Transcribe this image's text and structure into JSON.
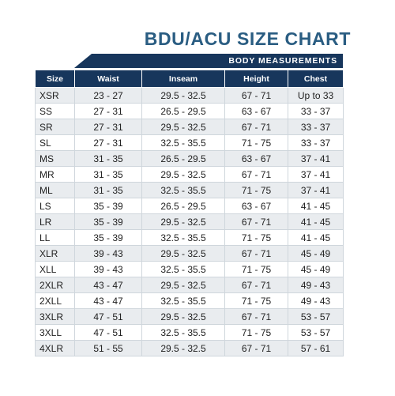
{
  "title": "BDU/ACU SIZE CHART",
  "banner": "BODY MEASUREMENTS",
  "columns": [
    "Size",
    "Waist",
    "Inseam",
    "Height",
    "Chest"
  ],
  "rows": [
    [
      "XSR",
      "23 - 27",
      "29.5 - 32.5",
      "67 - 71",
      "Up to 33"
    ],
    [
      "SS",
      "27 - 31",
      "26.5 - 29.5",
      "63 - 67",
      "33 - 37"
    ],
    [
      "SR",
      "27 - 31",
      "29.5 - 32.5",
      "67 - 71",
      "33 - 37"
    ],
    [
      "SL",
      "27 - 31",
      "32.5 - 35.5",
      "71 - 75",
      "33 - 37"
    ],
    [
      "MS",
      "31 - 35",
      "26.5 - 29.5",
      "63 - 67",
      "37 - 41"
    ],
    [
      "MR",
      "31 - 35",
      "29.5 - 32.5",
      "67 - 71",
      "37 - 41"
    ],
    [
      "ML",
      "31 - 35",
      "32.5 - 35.5",
      "71 - 75",
      "37 - 41"
    ],
    [
      "LS",
      "35 - 39",
      "26.5 - 29.5",
      "63 - 67",
      "41 - 45"
    ],
    [
      "LR",
      "35 - 39",
      "29.5 - 32.5",
      "67 - 71",
      "41 - 45"
    ],
    [
      "LL",
      "35 - 39",
      "32.5 - 35.5",
      "71 - 75",
      "41 - 45"
    ],
    [
      "XLR",
      "39 - 43",
      "29.5 - 32.5",
      "67 - 71",
      "45 - 49"
    ],
    [
      "XLL",
      "39 - 43",
      "32.5 - 35.5",
      "71 - 75",
      "45 - 49"
    ],
    [
      "2XLR",
      "43 - 47",
      "29.5 - 32.5",
      "67 - 71",
      "49 - 43"
    ],
    [
      "2XLL",
      "43 - 47",
      "32.5 - 35.5",
      "71 - 75",
      "49 - 43"
    ],
    [
      "3XLR",
      "47 - 51",
      "29.5 - 32.5",
      "67 - 71",
      "53 - 57"
    ],
    [
      "3XLL",
      "47 - 51",
      "32.5 - 35.5",
      "71 - 75",
      "53 - 57"
    ],
    [
      "4XLR",
      "51 - 55",
      "29.5 - 32.5",
      "67 - 71",
      "57 - 61"
    ]
  ],
  "colors": {
    "title": "#2a5d82",
    "header_bg": "#17365c",
    "row_shaded": "#e9ecef",
    "row_plain": "#ffffff"
  }
}
